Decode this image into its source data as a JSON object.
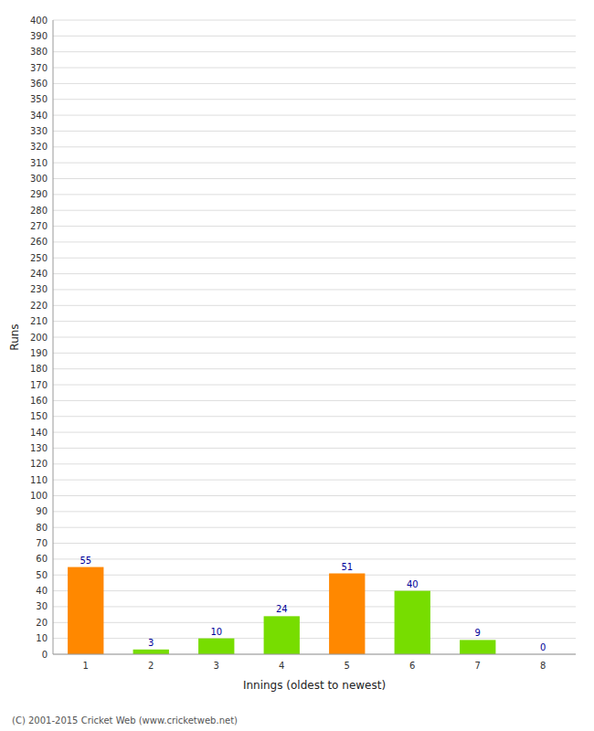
{
  "chart_data": {
    "type": "bar",
    "categories": [
      "1",
      "2",
      "3",
      "4",
      "5",
      "6",
      "7",
      "8"
    ],
    "values": [
      55,
      3,
      10,
      24,
      51,
      40,
      9,
      0
    ],
    "colors": [
      "#ff8800",
      "#77dd00",
      "#77dd00",
      "#77dd00",
      "#ff8800",
      "#77dd00",
      "#77dd00",
      "#77dd00"
    ],
    "xlabel": "Innings (oldest to newest)",
    "ylabel": "Runs",
    "ylim": [
      0,
      400
    ],
    "yticks": [
      0,
      10,
      20,
      30,
      40,
      50,
      60,
      70,
      80,
      90,
      100,
      110,
      120,
      130,
      140,
      150,
      160,
      170,
      180,
      190,
      200,
      210,
      220,
      230,
      240,
      250,
      260,
      270,
      280,
      290,
      300,
      310,
      320,
      330,
      340,
      350,
      360,
      370,
      380,
      390,
      400
    ],
    "grid": true,
    "data_labels": true,
    "annotations": [
      "(C) 2001-2015 Cricket Web (www.cricketweb.net)"
    ]
  }
}
